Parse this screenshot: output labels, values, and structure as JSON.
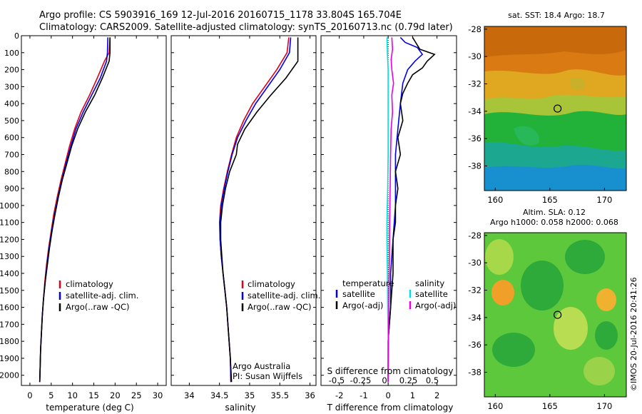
{
  "titles": {
    "line1": "Argo profile: CS 5903916_169 12-Jul-2016 20160715_1178 33.804S 165.704E",
    "line2": "Climatology: CARS2009. Satellite-adjusted climatology: synTS_20160713.nc (0.79d later)"
  },
  "colors": {
    "clim": "#e0001b",
    "sat": "#0000e6",
    "argo": "#000000",
    "s_sat": "#00e0e0",
    "s_argo": "#e600e6"
  },
  "chart_data": [
    {
      "type": "line",
      "name": "temperature-profile",
      "xlabel": "temperature (deg C)",
      "ylabel": "",
      "xlim": [
        -2,
        32
      ],
      "ylim": [
        2060,
        0
      ],
      "xticks": [
        0,
        5,
        10,
        15,
        20,
        25,
        30
      ],
      "yticks": [
        0,
        100,
        200,
        300,
        400,
        500,
        600,
        700,
        800,
        900,
        1000,
        1100,
        1200,
        1300,
        1400,
        1500,
        1600,
        1700,
        1800,
        1900,
        2000
      ],
      "legend": {
        "placement": "lower-center",
        "entries": [
          "climatology",
          "satellite-adj. clim.",
          "Argo(..raw -QC)"
        ]
      },
      "series": [
        {
          "name": "climatology",
          "color": "#e0001b",
          "points": [
            [
              18.8,
              10
            ],
            [
              18.6,
              100
            ],
            [
              17.5,
              150
            ],
            [
              15.8,
              250
            ],
            [
              14.0,
              350
            ],
            [
              12.0,
              450
            ],
            [
              10.5,
              550
            ],
            [
              9.3,
              650
            ],
            [
              8.3,
              750
            ],
            [
              7.3,
              850
            ],
            [
              6.4,
              950
            ],
            [
              5.6,
              1050
            ],
            [
              5.0,
              1150
            ],
            [
              4.4,
              1250
            ],
            [
              3.9,
              1350
            ],
            [
              3.5,
              1450
            ],
            [
              3.2,
              1550
            ],
            [
              2.9,
              1650
            ],
            [
              2.7,
              1750
            ],
            [
              2.5,
              1850
            ],
            [
              2.4,
              1950
            ],
            [
              2.3,
              2040
            ]
          ]
        },
        {
          "name": "satellite-adj. clim.",
          "color": "#0000e6",
          "points": [
            [
              18.3,
              10
            ],
            [
              18.2,
              100
            ],
            [
              18.0,
              150
            ],
            [
              16.5,
              250
            ],
            [
              14.5,
              350
            ],
            [
              12.5,
              450
            ],
            [
              10.8,
              550
            ],
            [
              9.6,
              650
            ],
            [
              8.5,
              750
            ],
            [
              7.5,
              850
            ],
            [
              6.6,
              950
            ],
            [
              5.8,
              1050
            ],
            [
              5.1,
              1150
            ],
            [
              4.5,
              1250
            ],
            [
              4.0,
              1350
            ],
            [
              3.6,
              1450
            ],
            [
              3.2,
              1550
            ],
            [
              2.9,
              1650
            ],
            [
              2.7,
              1750
            ],
            [
              2.5,
              1850
            ],
            [
              2.4,
              1950
            ],
            [
              2.3,
              2040
            ]
          ]
        },
        {
          "name": "Argo(..raw -QC)",
          "color": "#000000",
          "points": [
            [
              18.8,
              10
            ],
            [
              18.8,
              100
            ],
            [
              18.6,
              150
            ],
            [
              17.0,
              250
            ],
            [
              15.2,
              350
            ],
            [
              13.0,
              450
            ],
            [
              11.2,
              550
            ],
            [
              9.8,
              650
            ],
            [
              8.7,
              750
            ],
            [
              7.6,
              850
            ],
            [
              6.7,
              950
            ],
            [
              5.9,
              1050
            ],
            [
              5.2,
              1150
            ],
            [
              4.6,
              1250
            ],
            [
              4.1,
              1350
            ],
            [
              3.6,
              1450
            ],
            [
              3.2,
              1550
            ],
            [
              2.9,
              1650
            ],
            [
              2.7,
              1750
            ],
            [
              2.5,
              1850
            ],
            [
              2.4,
              1950
            ],
            [
              2.3,
              2040
            ]
          ]
        }
      ]
    },
    {
      "type": "line",
      "name": "salinity-profile",
      "xlabel": "salinity",
      "ylabel": "",
      "xlim": [
        33.7,
        36.1
      ],
      "ylim": [
        2060,
        0
      ],
      "xticks": [
        34,
        34.5,
        35,
        35.5,
        36
      ],
      "legend": {
        "placement": "lower-center",
        "entries": [
          "climatology",
          "satellite-adj. clim.",
          "Argo(..raw -QC)"
        ]
      },
      "annotation": [
        "Argo Australia",
        "PI: Susan Wijffels"
      ],
      "series": [
        {
          "name": "climatology",
          "color": "#e0001b",
          "points": [
            [
              35.65,
              10
            ],
            [
              35.62,
              100
            ],
            [
              35.45,
              200
            ],
            [
              35.25,
              300
            ],
            [
              35.05,
              400
            ],
            [
              34.9,
              500
            ],
            [
              34.78,
              600
            ],
            [
              34.7,
              700
            ],
            [
              34.63,
              800
            ],
            [
              34.57,
              900
            ],
            [
              34.52,
              1000
            ],
            [
              34.5,
              1100
            ],
            [
              34.51,
              1200
            ],
            [
              34.53,
              1300
            ],
            [
              34.56,
              1400
            ],
            [
              34.59,
              1500
            ],
            [
              34.62,
              1600
            ],
            [
              34.64,
              1700
            ],
            [
              34.66,
              1800
            ],
            [
              34.68,
              1900
            ],
            [
              34.69,
              2040
            ]
          ]
        },
        {
          "name": "satellite-adj. clim.",
          "color": "#0000e6",
          "points": [
            [
              35.68,
              10
            ],
            [
              35.66,
              100
            ],
            [
              35.5,
              200
            ],
            [
              35.3,
              300
            ],
            [
              35.1,
              400
            ],
            [
              34.94,
              500
            ],
            [
              34.8,
              600
            ],
            [
              34.71,
              700
            ],
            [
              34.64,
              800
            ],
            [
              34.58,
              900
            ],
            [
              34.53,
              1000
            ],
            [
              34.51,
              1100
            ],
            [
              34.51,
              1200
            ],
            [
              34.53,
              1300
            ],
            [
              34.56,
              1400
            ],
            [
              34.59,
              1500
            ],
            [
              34.62,
              1600
            ],
            [
              34.64,
              1700
            ],
            [
              34.66,
              1800
            ],
            [
              34.68,
              1900
            ],
            [
              34.69,
              2040
            ]
          ]
        },
        {
          "name": "Argo(..raw -QC)",
          "color": "#000000",
          "points": [
            [
              35.8,
              10
            ],
            [
              35.8,
              150
            ],
            [
              35.6,
              250
            ],
            [
              35.35,
              350
            ],
            [
              35.12,
              450
            ],
            [
              34.92,
              550
            ],
            [
              34.8,
              640
            ],
            [
              34.78,
              700
            ],
            [
              34.67,
              800
            ],
            [
              34.6,
              900
            ],
            [
              34.55,
              1000
            ],
            [
              34.52,
              1100
            ],
            [
              34.52,
              1200
            ],
            [
              34.54,
              1300
            ],
            [
              34.56,
              1400
            ],
            [
              34.59,
              1500
            ],
            [
              34.62,
              1600
            ],
            [
              34.64,
              1700
            ],
            [
              34.66,
              1800
            ],
            [
              34.68,
              1900
            ],
            [
              34.7,
              2040
            ]
          ]
        }
      ]
    },
    {
      "type": "line",
      "name": "difference-profile",
      "xlabel": "T difference from climatology",
      "x2label": "S difference from climatology",
      "xlim": [
        -2.75,
        2.8
      ],
      "ylim": [
        2060,
        0
      ],
      "xticks": [
        -2,
        -1,
        0,
        1,
        2
      ],
      "x2ticks": [
        -0.5,
        -0.25,
        0,
        0.25,
        0.5
      ],
      "legend": {
        "placement": "upper",
        "groups": [
          {
            "title": "temperature",
            "entries": [
              "satellite",
              "Argo(-adj)"
            ]
          },
          {
            "title": "salinity",
            "entries": [
              "satellite",
              "Argo(-adj)"
            ]
          }
        ]
      },
      "series": [
        {
          "name": "T satellite",
          "color": "#0000e6",
          "points": [
            [
              0.5,
              10
            ],
            [
              0.7,
              40
            ],
            [
              1.2,
              70
            ],
            [
              1.4,
              110
            ],
            [
              1.1,
              150
            ],
            [
              0.8,
              200
            ],
            [
              0.6,
              280
            ],
            [
              0.5,
              400
            ],
            [
              0.4,
              550
            ],
            [
              0.3,
              700
            ],
            [
              0.3,
              850
            ],
            [
              0.3,
              1000
            ],
            [
              0.2,
              1200
            ],
            [
              0.1,
              1400
            ],
            [
              0.1,
              1600
            ],
            [
              0.0,
              1800
            ],
            [
              0.0,
              2040
            ]
          ]
        },
        {
          "name": "T Argo(-adj)",
          "color": "#000000",
          "points": [
            [
              1.0,
              10
            ],
            [
              1.3,
              80
            ],
            [
              1.9,
              110
            ],
            [
              1.6,
              150
            ],
            [
              1.4,
              190
            ],
            [
              1.0,
              230
            ],
            [
              0.8,
              280
            ],
            [
              0.6,
              340
            ],
            [
              0.5,
              400
            ],
            [
              0.6,
              500
            ],
            [
              0.4,
              600
            ],
            [
              0.5,
              700
            ],
            [
              0.3,
              800
            ],
            [
              0.4,
              900
            ],
            [
              0.3,
              1000
            ],
            [
              0.3,
              1100
            ],
            [
              0.2,
              1200
            ],
            [
              0.2,
              1400
            ],
            [
              0.1,
              1600
            ],
            [
              0.0,
              1800
            ],
            [
              0.0,
              2040
            ]
          ]
        },
        {
          "name": "S satellite",
          "color": "#00e0e0",
          "points": [
            [
              -0.05,
              10
            ],
            [
              -0.03,
              100
            ],
            [
              0.0,
              200
            ],
            [
              0.0,
              500
            ],
            [
              0.0,
              700
            ],
            [
              -0.02,
              900
            ],
            [
              -0.05,
              1100
            ],
            [
              -0.05,
              1200
            ],
            [
              -0.03,
              1400
            ],
            [
              -0.02,
              1600
            ],
            [
              0.0,
              1800
            ],
            [
              0.0,
              2040
            ]
          ]
        },
        {
          "name": "S Argo(-adj)",
          "color": "#e600e6",
          "points": [
            [
              0.15,
              10
            ],
            [
              0.18,
              80
            ],
            [
              0.12,
              140
            ],
            [
              0.15,
              200
            ],
            [
              0.22,
              280
            ],
            [
              0.15,
              350
            ],
            [
              0.18,
              450
            ],
            [
              0.12,
              550
            ],
            [
              0.1,
              700
            ],
            [
              0.08,
              900
            ],
            [
              0.06,
              1100
            ],
            [
              0.05,
              1300
            ],
            [
              0.03,
              1500
            ],
            [
              0.02,
              1700
            ],
            [
              0.01,
              1900
            ],
            [
              0.0,
              2040
            ]
          ]
        }
      ]
    },
    {
      "type": "heatmap",
      "name": "sst-map",
      "title": "sat. SST: 18.4  Argo: 18.7",
      "xlim": [
        159,
        172
      ],
      "ylim": [
        -39.8,
        -27.8
      ],
      "xticks": [
        160,
        165,
        170
      ],
      "yticks": [
        -28,
        -30,
        -32,
        -34,
        -36,
        -38
      ],
      "marker": {
        "lon": 165.704,
        "lat": -33.804
      }
    },
    {
      "type": "heatmap",
      "name": "sla-map",
      "title": "Altim. SLA: 0.12",
      "subtitle": "Argo h1000: 0.058 h2000: 0.068",
      "xlim": [
        159,
        172
      ],
      "ylim": [
        -39.8,
        -27.8
      ],
      "xticks": [
        160,
        165,
        170
      ],
      "yticks": [
        -28,
        -30,
        -32,
        -34,
        -36,
        -38
      ],
      "marker": {
        "lon": 165.704,
        "lat": -33.804
      }
    }
  ],
  "credit": "©IMOS 20-Jul-2016 20:41:26"
}
